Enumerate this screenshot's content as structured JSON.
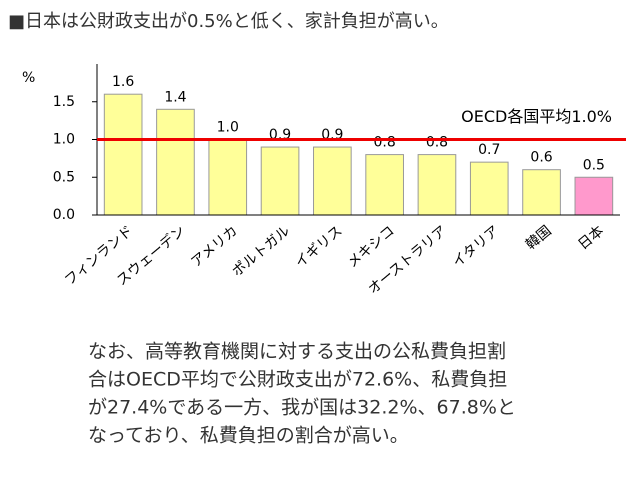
{
  "chart_data": {
    "type": "bar",
    "title": "■日本は公財政支出が0.5%と低く、家計負担が高い。",
    "y_label": "%",
    "categories": [
      "フィンランド",
      "スウェーデン",
      "アメリカ",
      "ポルトガル",
      "イギリス",
      "メキシコ",
      "オーストラリア",
      "イタリア",
      "韓国",
      "日本"
    ],
    "values": [
      1.6,
      1.4,
      1.0,
      0.9,
      0.9,
      0.8,
      0.8,
      0.7,
      0.6,
      0.5
    ],
    "value_labels": [
      "1.6",
      "1.4",
      "1.0",
      "0.9",
      "0.9",
      "0.8",
      "0.8",
      "0.7",
      "0.6",
      "0.5"
    ],
    "colors": [
      "#ffff99",
      "#ffff99",
      "#ffff99",
      "#ffff99",
      "#ffff99",
      "#ffff99",
      "#ffff99",
      "#ffff99",
      "#ffff99",
      "#ff99cc"
    ],
    "ylim": [
      0,
      2
    ],
    "yticks": [
      {
        "value": 0,
        "label": "0.0"
      },
      0.5,
      {
        "value": 1,
        "label": "1.0"
      },
      1.5
    ],
    "reference_line": {
      "value": 1.0,
      "label": "OECD各国平均1.0%",
      "color": "#ee0000"
    },
    "grid": false
  },
  "note": [
    "なお、高等教育機関に対する支出の公私費負担割",
    "合はOECD平均で公財政支出が72.6%、私費負担",
    "が27.4%である一方、我が国は32.2%、67.8%と",
    "なっており、私費負担の割合が高い。"
  ]
}
